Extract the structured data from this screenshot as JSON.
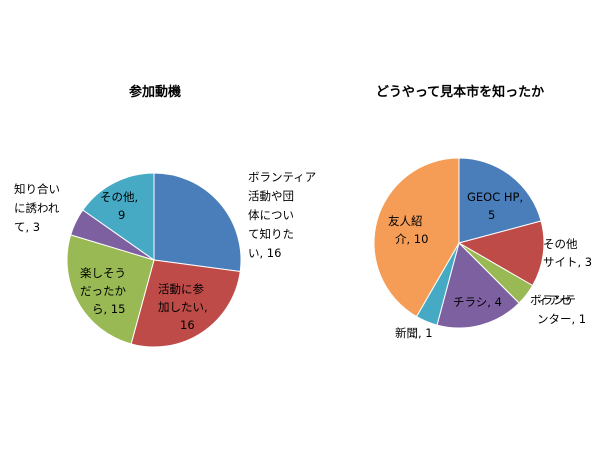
{
  "chart_data": [
    {
      "type": "pie",
      "title": "参加動機",
      "slices": [
        {
          "label_lines": [
            "ボランティア",
            "活動や団",
            "体につい",
            "て知りた",
            "い, 16"
          ],
          "value": 16,
          "color": "#4a7ebb"
        },
        {
          "label_lines": [
            "活動に参",
            "加したい,",
            "16"
          ],
          "value": 16,
          "color": "#be4b48"
        },
        {
          "label_lines": [
            "楽しそう",
            "だったか",
            "ら, 15"
          ],
          "value": 15,
          "color": "#98b954"
        },
        {
          "label_lines": [
            "知り合い",
            "に誘われ",
            "て, 3"
          ],
          "value": 3,
          "color": "#7d60a0"
        },
        {
          "label_lines": [
            "その他,",
            "9"
          ],
          "value": 9,
          "color": "#46aac5"
        }
      ]
    },
    {
      "type": "pie",
      "title": "どうやって見本市を知ったか",
      "slices": [
        {
          "label_lines": [
            "GEOC HP,",
            "5"
          ],
          "value": 5,
          "color": "#4a7ebb"
        },
        {
          "label_lines": [
            "その他",
            "サイト, 3"
          ],
          "value": 3,
          "color": "#be4b48"
        },
        {
          "label_lines": [
            "ボランティアセ",
            "ンター, 1"
          ],
          "value": 1,
          "color": "#98b954",
          "label_display": [
            "ボランテ",
            "ィアセ",
            "ンター, 1"
          ]
        },
        {
          "label_lines": [
            "チラシ, 4"
          ],
          "value": 4,
          "color": "#7d60a0"
        },
        {
          "label_lines": [
            "新聞, 1"
          ],
          "value": 1,
          "color": "#46aac5"
        },
        {
          "label_lines": [
            "友人紹",
            "介, 10"
          ],
          "value": 10,
          "color": "#f59d56"
        }
      ]
    }
  ]
}
